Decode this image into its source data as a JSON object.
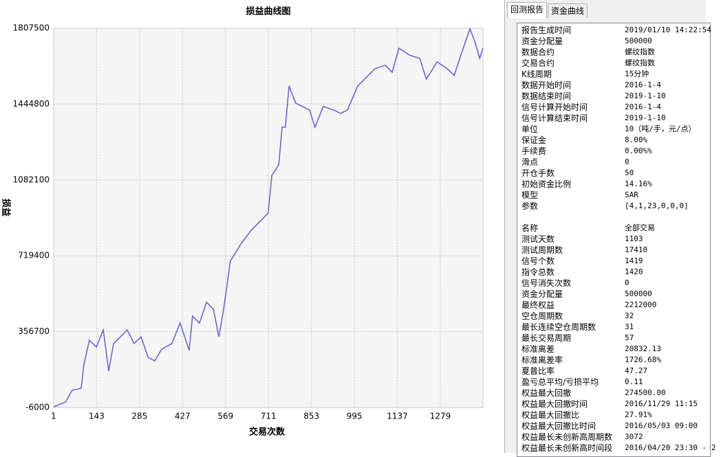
{
  "chart_data": {
    "type": "line",
    "title": "损益曲线图",
    "y_label": "损益",
    "x_label": "交易次数",
    "color": "#6a66cc",
    "grid": true,
    "xlim": [
      1,
      1420
    ],
    "xticks": [
      1,
      143,
      285,
      427,
      569,
      711,
      853,
      995,
      1137,
      1279
    ],
    "ylim": [
      -6000,
      1807500
    ],
    "yticks": [
      -6000,
      356700,
      719400,
      1082100,
      1444800,
      1807500
    ],
    "x": [
      1,
      40,
      62,
      92,
      101,
      119,
      142,
      165,
      183,
      199,
      222,
      244,
      267,
      290,
      313,
      335,
      358,
      392,
      419,
      449,
      460,
      483,
      506,
      529,
      547,
      563,
      585,
      620,
      654,
      688,
      710,
      722,
      745,
      756,
      767,
      779,
      801,
      824,
      847,
      865,
      892,
      927,
      949,
      972,
      1006,
      1029,
      1063,
      1097,
      1120,
      1142,
      1177,
      1211,
      1233,
      1268,
      1302,
      1325,
      1347,
      1377,
      1393,
      1409,
      1420
    ],
    "values": [
      -3000,
      20000,
      76000,
      86000,
      201000,
      316000,
      283000,
      365000,
      168000,
      300000,
      332000,
      365000,
      300000,
      332000,
      234000,
      217000,
      273000,
      300000,
      398000,
      267000,
      431000,
      398000,
      497000,
      464000,
      332000,
      464000,
      694000,
      776000,
      842000,
      891000,
      924000,
      1104000,
      1154000,
      1334000,
      1334000,
      1531000,
      1449000,
      1433000,
      1416000,
      1334000,
      1433000,
      1416000,
      1400000,
      1416000,
      1531000,
      1564000,
      1614000,
      1630000,
      1597000,
      1712000,
      1679000,
      1663000,
      1564000,
      1646000,
      1614000,
      1581000,
      1679000,
      1804000,
      1745000,
      1663000,
      1712000
    ]
  },
  "tabs": [
    "回测报告",
    "资金曲线"
  ],
  "report": [
    [
      [
        "报告生成时间",
        "2019/01/10 14:22:54"
      ],
      [
        "资金分配量",
        "500000"
      ],
      [
        "数据合约",
        "螺纹指数"
      ],
      [
        "交易合约",
        "螺纹指数"
      ],
      [
        "K线周期",
        "15分钟"
      ],
      [
        "数据开始时间",
        "2016-1-4"
      ],
      [
        "数据结束时间",
        "2019-1-10"
      ],
      [
        "信号计算开始时间",
        "2016-1-4"
      ],
      [
        "信号计算结束时间",
        "2019-1-10"
      ],
      [
        "单位",
        "10（吨/手，元/点）"
      ],
      [
        "保证金",
        "8.00%"
      ],
      [
        "手续费",
        "0.00%%"
      ],
      [
        "滑点",
        "0"
      ],
      [
        "开仓手数",
        "50"
      ],
      [
        "初始资金比例",
        "14.16%"
      ],
      [
        "模型",
        "SAR"
      ],
      [
        "参数",
        "[4,1,23,0,0,0]"
      ]
    ],
    [
      [
        "名称",
        "全部交易"
      ],
      [
        "测试天数",
        "1103"
      ],
      [
        "测试周期数",
        "17410"
      ],
      [
        "信号个数",
        "1419"
      ],
      [
        "指令总数",
        "1420"
      ],
      [
        "信号消失次数",
        "0"
      ],
      [
        "资金分配量",
        "500000"
      ],
      [
        "最终权益",
        "2212000"
      ],
      [
        "空仓周期数",
        "32"
      ],
      [
        "最长连续空仓周期数",
        "31"
      ],
      [
        "最长交易周期",
        "57"
      ],
      [
        "标准离差",
        "20832.13"
      ],
      [
        "标准离差率",
        "1726.68%"
      ],
      [
        "夏普比率",
        "47.27"
      ],
      [
        "盈亏总平均/亏损平均",
        "0.11"
      ],
      [
        "权益最大回撤",
        "274500.00"
      ],
      [
        "权益最大回撤时间",
        "2016/11/29 11:15"
      ],
      [
        "权益最大回撤比",
        "27.91%"
      ],
      [
        "权益最大回撤比时间",
        "2016/05/03 09:00"
      ],
      [
        "权益最长未创新高周期数",
        "3072"
      ],
      [
        "权益最长未创新高时间段",
        "2016/04/20 23:30 - 2"
      ]
    ]
  ]
}
